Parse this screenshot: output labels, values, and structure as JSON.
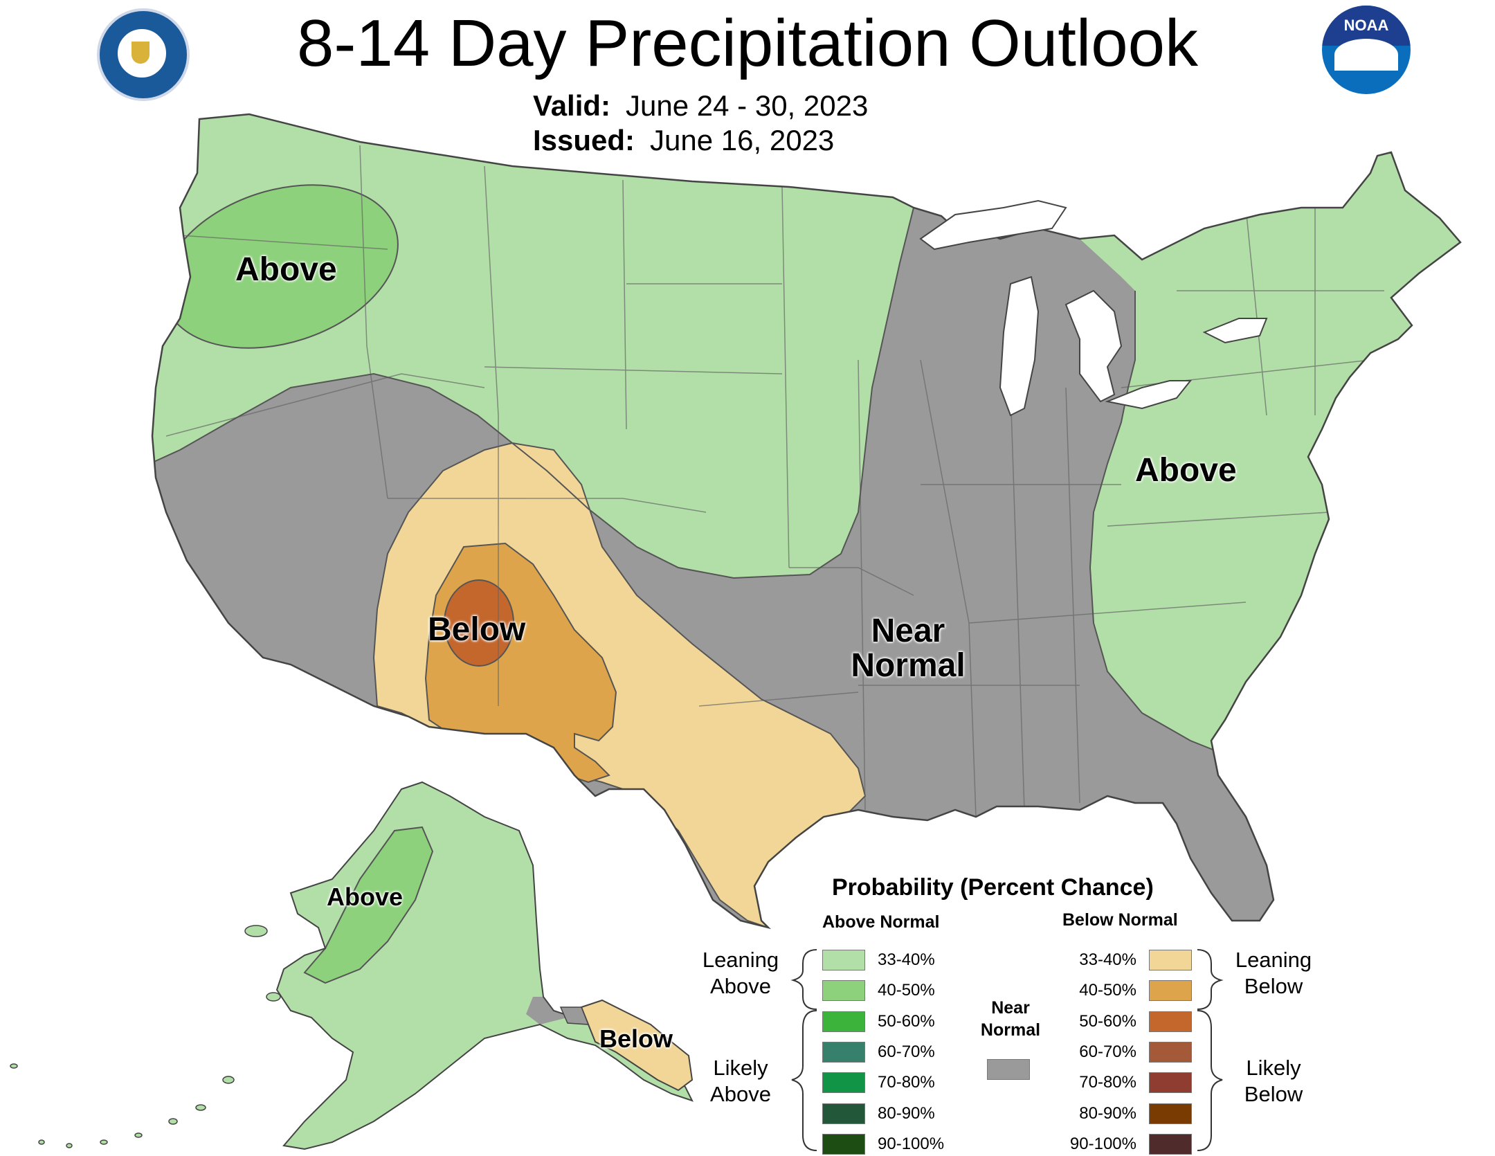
{
  "header": {
    "title": "8-14 Day Precipitation Outlook",
    "valid_label": "Valid:",
    "valid_value": "June 24 - 30, 2023",
    "issued_label": "Issued:",
    "issued_value": "June 16, 2023",
    "left_logo": "department-of-commerce-seal",
    "right_logo": "noaa-logo",
    "right_logo_text": "NOAA"
  },
  "map_labels": {
    "northwest": "Above",
    "east": "Above",
    "southwest": "Below",
    "central_line1": "Near",
    "central_line2": "Normal",
    "alaska": "Above",
    "alaska_panhandle": "Below"
  },
  "legend": {
    "title": "Probability (Percent Chance)",
    "above_header": "Above Normal",
    "below_header": "Below Normal",
    "near_normal_line1": "Near",
    "near_normal_line2": "Normal",
    "near_normal_color": "#9a9a9a",
    "leaning_above_line1": "Leaning",
    "leaning_above_line2": "Above",
    "likely_above_line1": "Likely",
    "likely_above_line2": "Above",
    "leaning_below_line1": "Leaning",
    "leaning_below_line2": "Below",
    "likely_below_line1": "Likely",
    "likely_below_line2": "Below",
    "above": [
      {
        "range": "33-40%",
        "color": "#b2dfa8"
      },
      {
        "range": "40-50%",
        "color": "#8dd17c"
      },
      {
        "range": "50-60%",
        "color": "#3cb43c"
      },
      {
        "range": "60-70%",
        "color": "#37806b"
      },
      {
        "range": "70-80%",
        "color": "#129447"
      },
      {
        "range": "80-90%",
        "color": "#225839"
      },
      {
        "range": "90-100%",
        "color": "#1e4d14"
      }
    ],
    "below": [
      {
        "range": "33-40%",
        "color": "#f2d698"
      },
      {
        "range": "40-50%",
        "color": "#dea44c"
      },
      {
        "range": "50-60%",
        "color": "#c4672d"
      },
      {
        "range": "60-70%",
        "color": "#a45a38"
      },
      {
        "range": "70-80%",
        "color": "#8f3d30"
      },
      {
        "range": "80-90%",
        "color": "#7a3b02"
      },
      {
        "range": "90-100%",
        "color": "#4f2b2b"
      }
    ]
  }
}
